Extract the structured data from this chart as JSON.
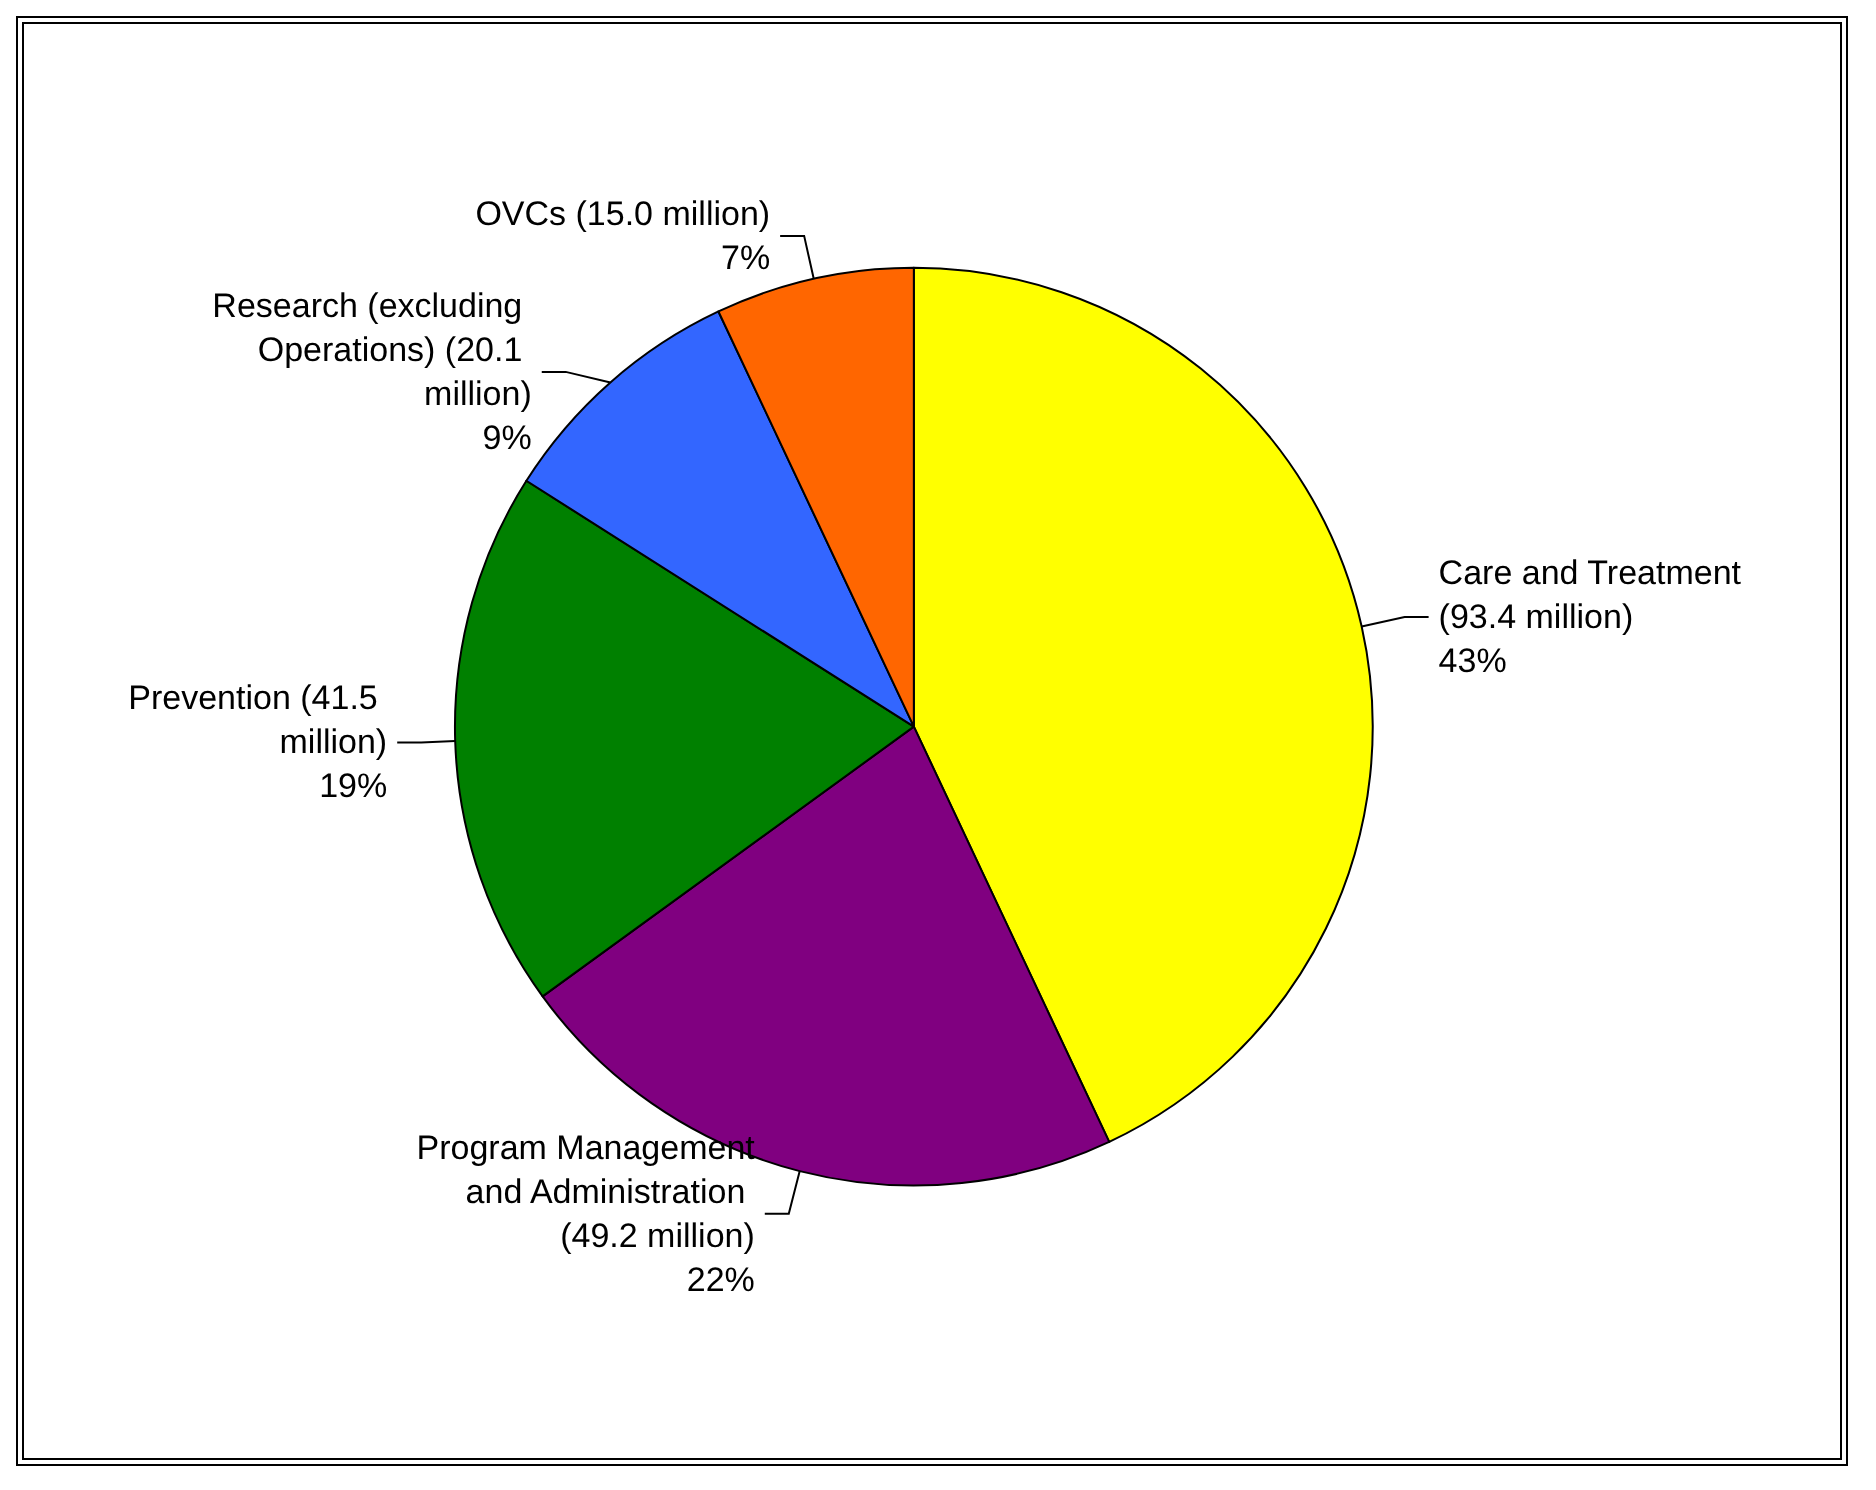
{
  "chart_data": {
    "type": "pie",
    "categories": [
      "Care and Treatment (93.4 million)",
      "Program Management and Administration (49.2 million)",
      "Prevention (41.5 million)",
      "Research (excluding Operations) (20.1 million)",
      "OVCs (15.0 million)"
    ],
    "values": [
      43,
      22,
      19,
      9,
      7
    ],
    "colors": [
      "#ffff00",
      "#800080",
      "#008000",
      "#3366ff",
      "#ff6600"
    ],
    "value_labels": [
      "43%",
      "22%",
      "19%",
      "9%",
      "7%"
    ]
  }
}
